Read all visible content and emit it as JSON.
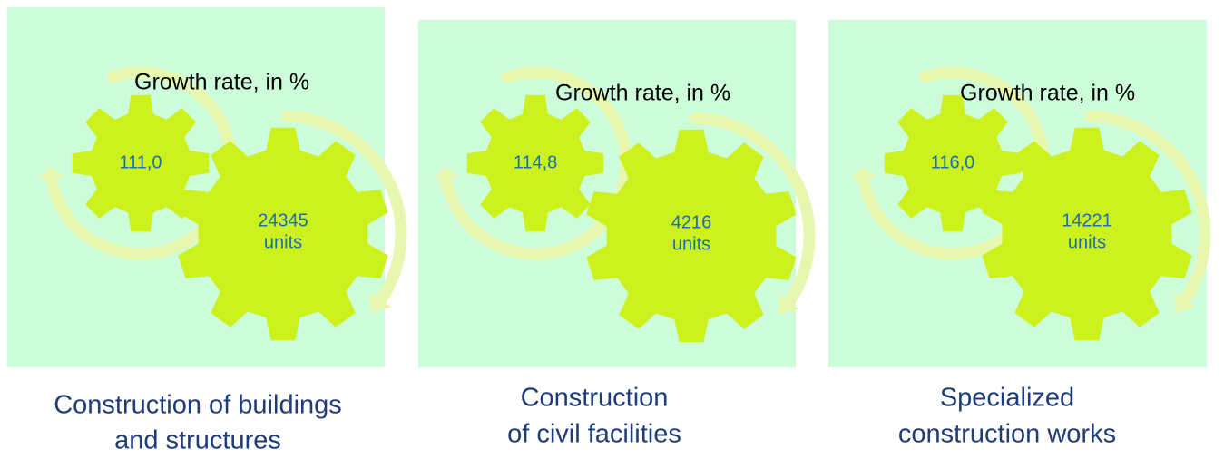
{
  "panels": [
    {
      "growth_label": "Growth rate, in %",
      "growth": "111,0",
      "count": "24345",
      "unit": "units",
      "caption": [
        "Construction of buildings",
        "and structures"
      ]
    },
    {
      "growth_label": "Growth rate, in %",
      "growth": "114,8",
      "count": "4216",
      "unit": "units",
      "caption": [
        "Construction",
        "of civil facilities"
      ]
    },
    {
      "growth_label": "Growth rate, in %",
      "growth": "116,0",
      "count": "14221",
      "unit": "units",
      "caption": [
        "Specialized",
        "construction works"
      ]
    }
  ]
}
